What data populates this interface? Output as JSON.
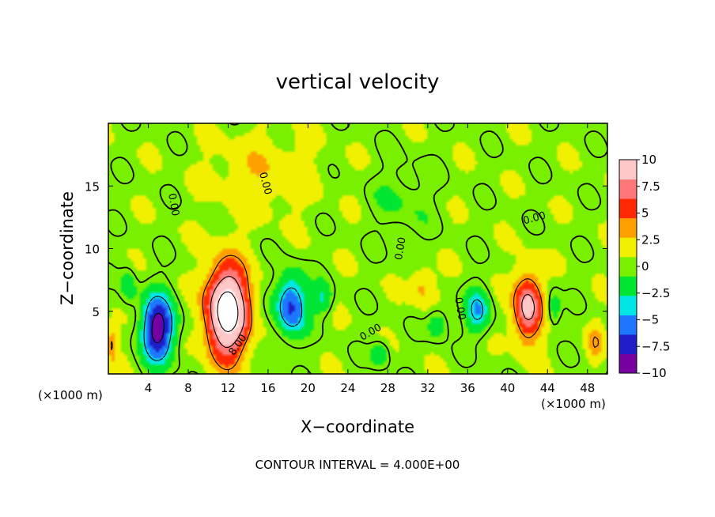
{
  "chart_data": {
    "type": "heatmap",
    "title": "vertical velocity",
    "xlabel": "X−coordinate",
    "ylabel": "Z−coordinate",
    "x_unit_label": "(×1000 m)",
    "x_unit_label_right": "(×1000 m)",
    "xlim": [
      0,
      50
    ],
    "ylim": [
      0,
      20
    ],
    "x_ticks": [
      4,
      8,
      12,
      16,
      20,
      24,
      28,
      32,
      36,
      40,
      44,
      48
    ],
    "y_ticks": [
      5,
      10,
      15
    ],
    "colorbar": {
      "range": [
        -10,
        10
      ],
      "tick_values": [
        10,
        7.5,
        5,
        2.5,
        0,
        -2.5,
        -5,
        -7.5,
        -10
      ],
      "tick_labels": [
        "10",
        "7.5",
        "5",
        "2.5",
        "0",
        "−2.5",
        "−5",
        "−7.5",
        "−10"
      ],
      "colors": [
        "#7800a0",
        "#1e1ec8",
        "#1e78ff",
        "#00e6e6",
        "#00e632",
        "#78f000",
        "#f0f000",
        "#ffa000",
        "#ff2800",
        "#ff7878",
        "#ffc8c8"
      ]
    },
    "background_value": 0.5,
    "features": [
      {
        "label": "updraft",
        "x": 11.9,
        "z": 5.0,
        "amplitude": 14,
        "sx": 2.1,
        "sz": 3.6
      },
      {
        "label": "downdraft",
        "x": 5.0,
        "z": 3.6,
        "amplitude": -10,
        "sx": 1.6,
        "sz": 2.6
      },
      {
        "label": "downdraft",
        "x": 18.3,
        "z": 5.5,
        "amplitude": -7.5,
        "sx": 1.5,
        "sz": 2.4
      },
      {
        "label": "downdraft",
        "x": 21.5,
        "z": 6.0,
        "amplitude": -3.5,
        "sx": 0.9,
        "sz": 1.2
      },
      {
        "label": "updraft",
        "x": 42.0,
        "z": 5.3,
        "amplitude": 9,
        "sx": 1.4,
        "sz": 2.7
      },
      {
        "label": "downdraft",
        "x": 37.0,
        "z": 5.0,
        "amplitude": -5,
        "sx": 1.2,
        "sz": 1.8
      },
      {
        "label": "downdraft",
        "x": 27.2,
        "z": 1.6,
        "amplitude": -3,
        "sx": 0.9,
        "sz": 1.0
      },
      {
        "label": "downdraft",
        "x": 33.0,
        "z": 4.0,
        "amplitude": -3,
        "sx": 1.0,
        "sz": 1.2
      },
      {
        "label": "updraft",
        "x": 31.5,
        "z": 7.0,
        "amplitude": 3,
        "sx": 1.2,
        "sz": 1.5
      },
      {
        "label": "downdraft",
        "x": 44.6,
        "z": 5.2,
        "amplitude": -3,
        "sx": 0.7,
        "sz": 1.4
      },
      {
        "label": "updraft",
        "x": 48.8,
        "z": 2.5,
        "amplitude": 3,
        "sx": 0.8,
        "sz": 1.4
      },
      {
        "label": "updraft",
        "x": 0.4,
        "z": 2.5,
        "amplitude": 4,
        "sx": 0.5,
        "sz": 1.6
      },
      {
        "label": "downdraft",
        "x": 2.0,
        "z": 7.0,
        "amplitude": -2.5,
        "sx": 0.8,
        "sz": 1.5
      },
      {
        "label": "updraft",
        "x": 15.5,
        "z": 16.0,
        "amplitude": 2,
        "sx": 5.0,
        "sz": 3.0
      },
      {
        "label": "updraft",
        "x": 29.5,
        "z": 14.0,
        "amplitude": -1.5,
        "sx": 3.0,
        "sz": 3.0
      }
    ],
    "contour_labels": [
      {
        "text": "8.00",
        "x": 13.0,
        "z": 2.3,
        "angle": -55
      },
      {
        "text": "0.00",
        "x": 6.5,
        "z": 13.5,
        "angle": 80
      },
      {
        "text": "0.00",
        "x": 15.7,
        "z": 15.2,
        "angle": 75
      },
      {
        "text": "0.00",
        "x": 29.3,
        "z": 10.0,
        "angle": -80
      },
      {
        "text": "0.00",
        "x": 26.3,
        "z": 3.3,
        "angle": -30
      },
      {
        "text": "0.00",
        "x": 35.2,
        "z": 5.2,
        "angle": 80
      },
      {
        "text": "0.00",
        "x": 42.7,
        "z": 12.4,
        "angle": -15
      }
    ]
  },
  "footer": {
    "contour_interval": "CONTOUR INTERVAL = 4.000E+00"
  }
}
